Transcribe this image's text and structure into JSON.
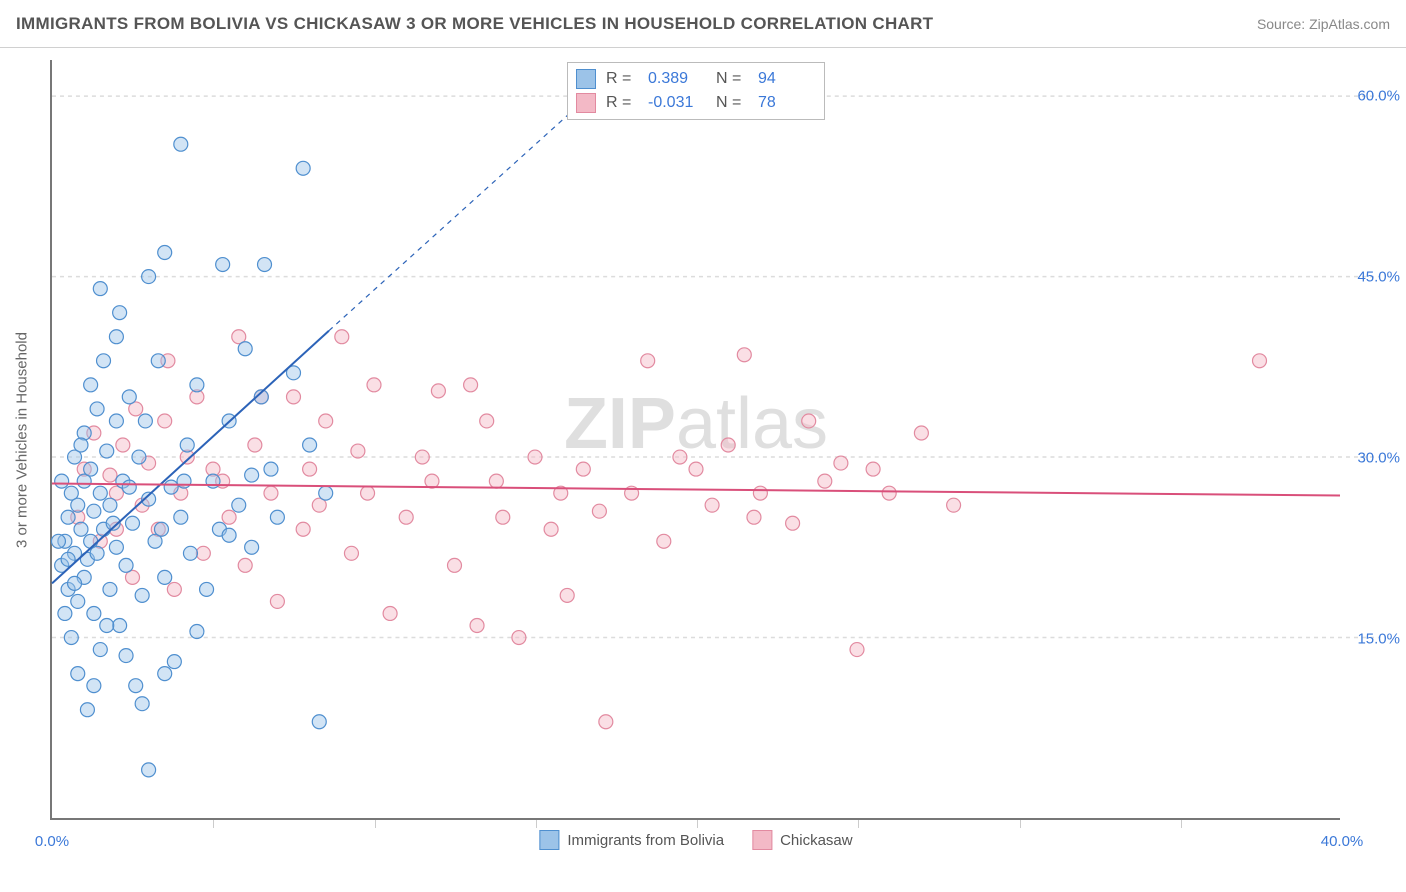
{
  "title": "IMMIGRANTS FROM BOLIVIA VS CHICKASAW 3 OR MORE VEHICLES IN HOUSEHOLD CORRELATION CHART",
  "source": "Source: ZipAtlas.com",
  "y_axis_label": "3 or more Vehicles in Household",
  "watermark_bold": "ZIP",
  "watermark_rest": "atlas",
  "chart": {
    "type": "scatter",
    "xlim": [
      0,
      40
    ],
    "ylim": [
      0,
      63
    ],
    "x_ticks": [
      0,
      40
    ],
    "x_tick_labels": [
      "0.0%",
      "40.0%"
    ],
    "x_minor_ticks": [
      5,
      10,
      15,
      20,
      25,
      30,
      35
    ],
    "y_ticks": [
      15,
      30,
      45,
      60
    ],
    "y_tick_labels": [
      "15.0%",
      "30.0%",
      "45.0%",
      "60.0%"
    ],
    "background_color": "#ffffff",
    "grid_color": "#dcdcdc",
    "axis_color": "#777777",
    "tick_label_color": "#3b78d8",
    "marker_radius": 7,
    "marker_opacity": 0.45,
    "series": [
      {
        "name": "Immigrants from Bolivia",
        "color_fill": "#9cc3e8",
        "color_stroke": "#4f8fcf",
        "R": "0.389",
        "N": "94",
        "trend": {
          "x1": 0,
          "y1": 19.5,
          "x2": 8.6,
          "y2": 40.5,
          "dash_to_x": 17.5,
          "dash_to_y": 62,
          "color": "#2c63b8",
          "width": 2
        },
        "points": [
          [
            0.3,
            21
          ],
          [
            0.4,
            23
          ],
          [
            0.5,
            19
          ],
          [
            0.5,
            25
          ],
          [
            0.6,
            27
          ],
          [
            0.7,
            22
          ],
          [
            0.7,
            30
          ],
          [
            0.8,
            18
          ],
          [
            0.8,
            26
          ],
          [
            0.9,
            24
          ],
          [
            1.0,
            20
          ],
          [
            1.0,
            28
          ],
          [
            1.1,
            21.5
          ],
          [
            1.2,
            23
          ],
          [
            1.2,
            29
          ],
          [
            1.3,
            17
          ],
          [
            1.3,
            25.5
          ],
          [
            1.4,
            22
          ],
          [
            1.5,
            27
          ],
          [
            1.5,
            14
          ],
          [
            1.6,
            24
          ],
          [
            1.7,
            30.5
          ],
          [
            1.8,
            19
          ],
          [
            1.8,
            26
          ],
          [
            2.0,
            22.5
          ],
          [
            2.0,
            33
          ],
          [
            2.1,
            16
          ],
          [
            2.2,
            28
          ],
          [
            2.3,
            21
          ],
          [
            2.4,
            35
          ],
          [
            2.5,
            24.5
          ],
          [
            2.6,
            11
          ],
          [
            2.7,
            30
          ],
          [
            2.8,
            18.5
          ],
          [
            3.0,
            26.5
          ],
          [
            3.0,
            45
          ],
          [
            3.2,
            23
          ],
          [
            3.3,
            38
          ],
          [
            3.5,
            20
          ],
          [
            3.5,
            47
          ],
          [
            3.7,
            27.5
          ],
          [
            3.8,
            13
          ],
          [
            4.0,
            25
          ],
          [
            4.0,
            56
          ],
          [
            4.2,
            31
          ],
          [
            4.3,
            22
          ],
          [
            4.5,
            36
          ],
          [
            4.5,
            15.5
          ],
          [
            5.0,
            28
          ],
          [
            5.2,
            24
          ],
          [
            5.3,
            46
          ],
          [
            5.5,
            33
          ],
          [
            5.8,
            26
          ],
          [
            6.0,
            39
          ],
          [
            6.2,
            22.5
          ],
          [
            6.5,
            35
          ],
          [
            6.6,
            46
          ],
          [
            6.8,
            29
          ],
          [
            7.0,
            25
          ],
          [
            7.5,
            37
          ],
          [
            7.8,
            54
          ],
          [
            8.0,
            31
          ],
          [
            8.3,
            8
          ],
          [
            8.5,
            27
          ],
          [
            1.0,
            32
          ],
          [
            1.4,
            34
          ],
          [
            0.6,
            15
          ],
          [
            0.8,
            12
          ],
          [
            1.1,
            9
          ],
          [
            1.5,
            44
          ],
          [
            2.0,
            40
          ],
          [
            2.3,
            13.5
          ],
          [
            2.8,
            9.5
          ],
          [
            0.3,
            28
          ],
          [
            0.4,
            17
          ],
          [
            0.9,
            31
          ],
          [
            1.7,
            16
          ],
          [
            3.0,
            4
          ],
          [
            3.5,
            12
          ],
          [
            4.8,
            19
          ],
          [
            1.2,
            36
          ],
          [
            1.6,
            38
          ],
          [
            2.1,
            42
          ],
          [
            0.5,
            21.5
          ],
          [
            0.7,
            19.5
          ],
          [
            1.9,
            24.5
          ],
          [
            2.4,
            27.5
          ],
          [
            0.2,
            23
          ],
          [
            5.5,
            23.5
          ],
          [
            6.2,
            28.5
          ],
          [
            2.9,
            33
          ],
          [
            3.4,
            24
          ],
          [
            4.1,
            28
          ],
          [
            1.3,
            11
          ]
        ]
      },
      {
        "name": "Chickasaw",
        "color_fill": "#f3b9c6",
        "color_stroke": "#e28aa0",
        "R": "-0.031",
        "N": "78",
        "trend": {
          "x1": 0,
          "y1": 27.8,
          "x2": 40,
          "y2": 26.8,
          "color": "#d94f7a",
          "width": 2
        },
        "points": [
          [
            1.0,
            29
          ],
          [
            1.5,
            23
          ],
          [
            2.0,
            27
          ],
          [
            2.2,
            31
          ],
          [
            2.5,
            20
          ],
          [
            2.8,
            26
          ],
          [
            3.0,
            29.5
          ],
          [
            3.3,
            24
          ],
          [
            3.5,
            33
          ],
          [
            3.8,
            19
          ],
          [
            4.0,
            27
          ],
          [
            4.5,
            35
          ],
          [
            4.7,
            22
          ],
          [
            5.0,
            29
          ],
          [
            5.5,
            25
          ],
          [
            5.8,
            40
          ],
          [
            6.0,
            21
          ],
          [
            6.3,
            31
          ],
          [
            6.8,
            27
          ],
          [
            7.0,
            18
          ],
          [
            7.5,
            35
          ],
          [
            7.8,
            24
          ],
          [
            8.0,
            29
          ],
          [
            8.5,
            33
          ],
          [
            9.0,
            40
          ],
          [
            9.3,
            22
          ],
          [
            9.8,
            27
          ],
          [
            10.0,
            36
          ],
          [
            10.5,
            17
          ],
          [
            11.0,
            25
          ],
          [
            11.5,
            30
          ],
          [
            12.0,
            35.5
          ],
          [
            12.5,
            21
          ],
          [
            13.0,
            36
          ],
          [
            13.2,
            16
          ],
          [
            13.8,
            28
          ],
          [
            14.0,
            25
          ],
          [
            14.5,
            15
          ],
          [
            15.0,
            30
          ],
          [
            15.5,
            24
          ],
          [
            16.0,
            18.5
          ],
          [
            16.5,
            29
          ],
          [
            17.0,
            25.5
          ],
          [
            17.2,
            8
          ],
          [
            18.0,
            27
          ],
          [
            18.5,
            38
          ],
          [
            19.0,
            23
          ],
          [
            20.0,
            29
          ],
          [
            20.5,
            26
          ],
          [
            21.0,
            31
          ],
          [
            21.5,
            38.5
          ],
          [
            22.0,
            27
          ],
          [
            23.0,
            24.5
          ],
          [
            23.5,
            33
          ],
          [
            24.0,
            28
          ],
          [
            25.0,
            14
          ],
          [
            25.5,
            29
          ],
          [
            26.0,
            27
          ],
          [
            27.0,
            32
          ],
          [
            28.0,
            26
          ],
          [
            37.5,
            38
          ],
          [
            0.8,
            25
          ],
          [
            1.3,
            32
          ],
          [
            1.8,
            28.5
          ],
          [
            2.6,
            34
          ],
          [
            4.2,
            30
          ],
          [
            5.3,
            28
          ],
          [
            6.5,
            35
          ],
          [
            8.3,
            26
          ],
          [
            9.5,
            30.5
          ],
          [
            11.8,
            28
          ],
          [
            13.5,
            33
          ],
          [
            15.8,
            27
          ],
          [
            19.5,
            30
          ],
          [
            21.8,
            25
          ],
          [
            24.5,
            29.5
          ],
          [
            2.0,
            24
          ],
          [
            3.6,
            38
          ]
        ]
      }
    ]
  },
  "legend": {
    "s1_label": "Immigrants from Bolivia",
    "s2_label": "Chickasaw"
  },
  "stats_labels": {
    "R": "R =",
    "N": "N ="
  }
}
